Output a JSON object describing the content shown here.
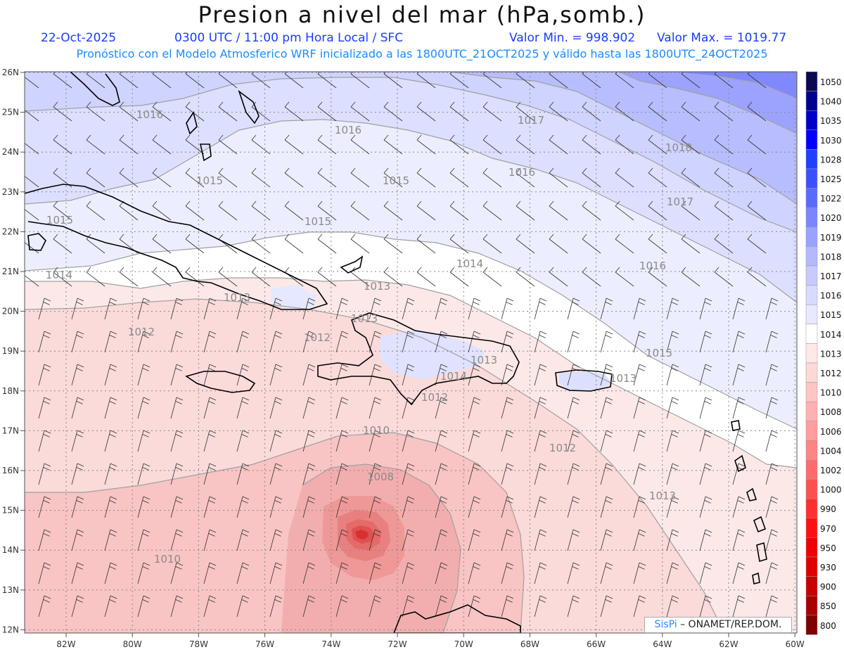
{
  "header": {
    "title": "Presion a nivel del mar (hPa,somb.)",
    "date": "22-Oct-2025",
    "time": "0300 UTC / 11:00 pm Hora Local / SFC",
    "min_label": "Valor Min. = 998.902",
    "max_label": "Valor Max. = 1019.77",
    "model_line": "Pronóstico con el Modelo Atmosferico WRF inicializado a las 1800UTC_21OCT2025 y válido hasta las  1800UTC_24OCT2025"
  },
  "axes": {
    "lat_labels": [
      "26N",
      "25N",
      "24N",
      "23N",
      "22N",
      "21N",
      "20N",
      "19N",
      "18N",
      "17N",
      "16N",
      "15N",
      "14N",
      "13N",
      "12N"
    ],
    "lon_labels": [
      "82W",
      "80W",
      "78W",
      "76W",
      "74W",
      "72W",
      "70W",
      "68W",
      "66W",
      "64W",
      "62W",
      "60W"
    ]
  },
  "colorbar": {
    "labels": [
      "1050",
      "1040",
      "1035",
      "1030",
      "1028",
      "1025",
      "1022",
      "1020",
      "1019",
      "1018",
      "1017",
      "1016",
      "1015",
      "1014",
      "1013",
      "1012",
      "1010",
      "1008",
      "1006",
      "1004",
      "1002",
      "1000",
      "990",
      "970",
      "950",
      "930",
      "900",
      "850",
      "800"
    ],
    "colors": [
      "#0a0a50",
      "#000090",
      "#0000c8",
      "#0000ff",
      "#2040ff",
      "#3a50ff",
      "#5a6aff",
      "#7a85ff",
      "#9aa2ff",
      "#b4b8ff",
      "#c8caff",
      "#d8daff",
      "#e8e8ff",
      "#ffffff",
      "#ffe8e8",
      "#ffd8d8",
      "#ffc4c4",
      "#ffb0b0",
      "#ff9c9c",
      "#ff8484",
      "#ff6c6c",
      "#ff5050",
      "#ff3030",
      "#ff1010",
      "#f00000",
      "#e00000",
      "#c80000",
      "#a80000",
      "#800000"
    ]
  },
  "contour_labels": [
    "1016",
    "1016",
    "1017",
    "1018",
    "1015",
    "1015",
    "1016",
    "1017",
    "1015",
    "1015",
    "1014",
    "1014",
    "1016",
    "1013",
    "1013",
    "1012",
    "1013",
    "1012",
    "1015",
    "1013",
    "1014",
    "1012",
    "1013",
    "1010",
    "1012",
    "1008",
    "1013",
    "1010"
  ],
  "credit": {
    "brand": "SisPi",
    "text": "– ONAMET/REP.DOM."
  }
}
